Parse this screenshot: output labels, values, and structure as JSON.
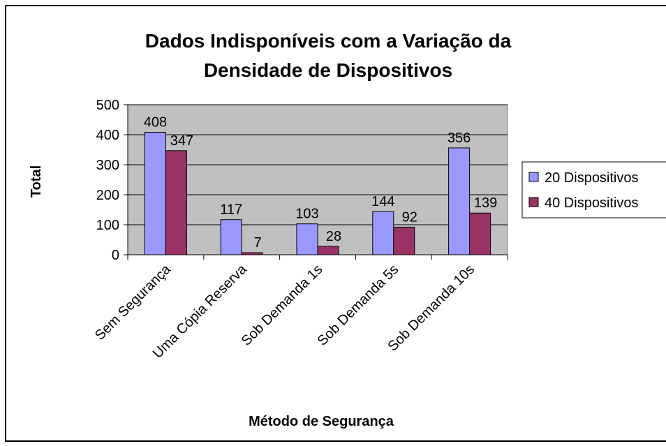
{
  "chart_data": {
    "type": "bar",
    "title": [
      "Dados Indisponíveis com a Variação da",
      "Densidade de Dispositivos"
    ],
    "x_label": "Método de Segurança",
    "y_label": "Total",
    "categories": [
      "Sem Segurança",
      "Uma Cópia Reserva",
      "Sob Demanda 1s",
      "Sob Demanda 5s",
      "Sob Demanda 10s"
    ],
    "series": [
      {
        "name": "20 Dispositivos",
        "color": "#9999ff",
        "values": [
          408,
          117,
          103,
          144,
          356
        ]
      },
      {
        "name": "40 Dispositivos",
        "color": "#993366",
        "values": [
          347,
          7,
          28,
          92,
          139
        ]
      }
    ],
    "ylim": [
      0,
      500
    ],
    "yticks": [
      0,
      100,
      200,
      300,
      400,
      500
    ],
    "grid": true,
    "legend": "right"
  }
}
